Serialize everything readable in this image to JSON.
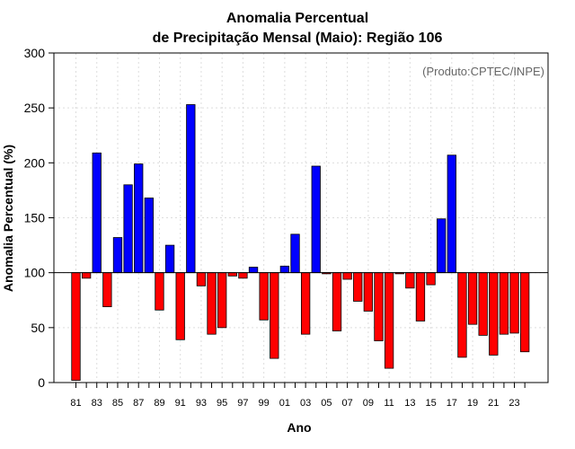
{
  "chart_data": {
    "type": "bar",
    "title_line1": "Anomalia Percentual",
    "title_line2": "de Precipitação Mensal (Maio): Região 106",
    "xlabel": "Ano",
    "ylabel": "Anomalia Percentual (%)",
    "annotation": "(Produto:CPTEC/INPE)",
    "baseline": 100,
    "ylim": [
      0,
      300
    ],
    "yticks": [
      0,
      50,
      100,
      150,
      200,
      250,
      300
    ],
    "xtick_labels": [
      "81",
      "83",
      "85",
      "87",
      "89",
      "91",
      "93",
      "95",
      "97",
      "99",
      "01",
      "03",
      "05",
      "07",
      "09",
      "11",
      "13",
      "15",
      "17",
      "19",
      "21",
      "23"
    ],
    "categories": [
      "1981",
      "1982",
      "1983",
      "1984",
      "1985",
      "1986",
      "1987",
      "1988",
      "1989",
      "1990",
      "1991",
      "1992",
      "1993",
      "1994",
      "1995",
      "1996",
      "1997",
      "1998",
      "1999",
      "2000",
      "2001",
      "2002",
      "2003",
      "2004",
      "2005",
      "2006",
      "2007",
      "2008",
      "2009",
      "2010",
      "2011",
      "2012",
      "2013",
      "2014",
      "2015",
      "2016",
      "2017",
      "2018",
      "2019",
      "2020",
      "2021",
      "2022",
      "2023",
      "2024"
    ],
    "values": [
      2,
      95,
      209,
      69,
      132,
      180,
      199,
      168,
      66,
      125,
      39,
      253,
      88,
      44,
      50,
      97,
      95,
      105,
      57,
      22,
      106,
      135,
      44,
      197,
      99,
      47,
      94,
      74,
      65,
      38,
      13,
      99,
      86,
      56,
      89,
      149,
      207,
      23,
      53,
      43,
      25,
      44,
      45,
      28
    ],
    "colors": {
      "above": "#0000ff",
      "below": "#ff0000"
    }
  }
}
